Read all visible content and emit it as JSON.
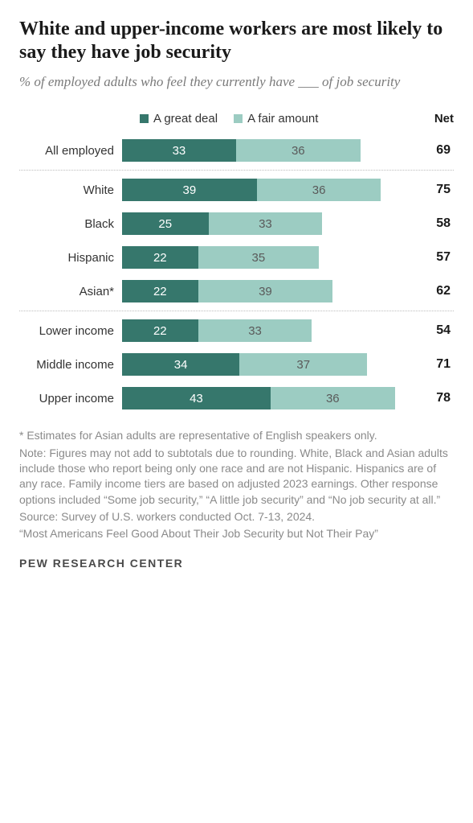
{
  "title": "White and upper-income workers are most likely to say they have job security",
  "subtitle": "% of employed adults who feel they currently have ___ of job security",
  "legend": {
    "series1": {
      "label": "A great deal",
      "color": "#36776c"
    },
    "series2": {
      "label": "A fair amount",
      "color": "#9cccc2"
    },
    "net_label": "Net"
  },
  "chart": {
    "max_value": 100,
    "bar_scale": 4.3,
    "value_label_color_dark": "#ffffff",
    "value_label_color_light": "#5a5a5a",
    "groups": [
      {
        "rows": [
          {
            "label": "All employed",
            "v1": 33,
            "v2": 36,
            "net": 69
          }
        ]
      },
      {
        "rows": [
          {
            "label": "White",
            "v1": 39,
            "v2": 36,
            "net": 75
          },
          {
            "label": "Black",
            "v1": 25,
            "v2": 33,
            "net": 58
          },
          {
            "label": "Hispanic",
            "v1": 22,
            "v2": 35,
            "net": 57
          },
          {
            "label": "Asian*",
            "v1": 22,
            "v2": 39,
            "net": 62
          }
        ]
      },
      {
        "rows": [
          {
            "label": "Lower income",
            "v1": 22,
            "v2": 33,
            "net": 54
          },
          {
            "label": "Middle income",
            "v1": 34,
            "v2": 37,
            "net": 71
          },
          {
            "label": "Upper income",
            "v1": 43,
            "v2": 36,
            "net": 78
          }
        ]
      }
    ]
  },
  "footnotes": {
    "asterisk": "* Estimates for Asian adults are representative of English speakers only.",
    "note": "Note: Figures may not add to subtotals due to rounding. White, Black and Asian adults include those who report being only one race and are not Hispanic. Hispanics are of any race. Family income tiers are based on adjusted 2023 earnings. Other response options included “Some job security,” “A little job security” and “No job security at all.”",
    "source": "Source: Survey of U.S. workers conducted Oct. 7-13, 2024.",
    "report": "“Most Americans Feel Good About Their Job Security but Not Their Pay”"
  },
  "attribution": "PEW RESEARCH CENTER"
}
